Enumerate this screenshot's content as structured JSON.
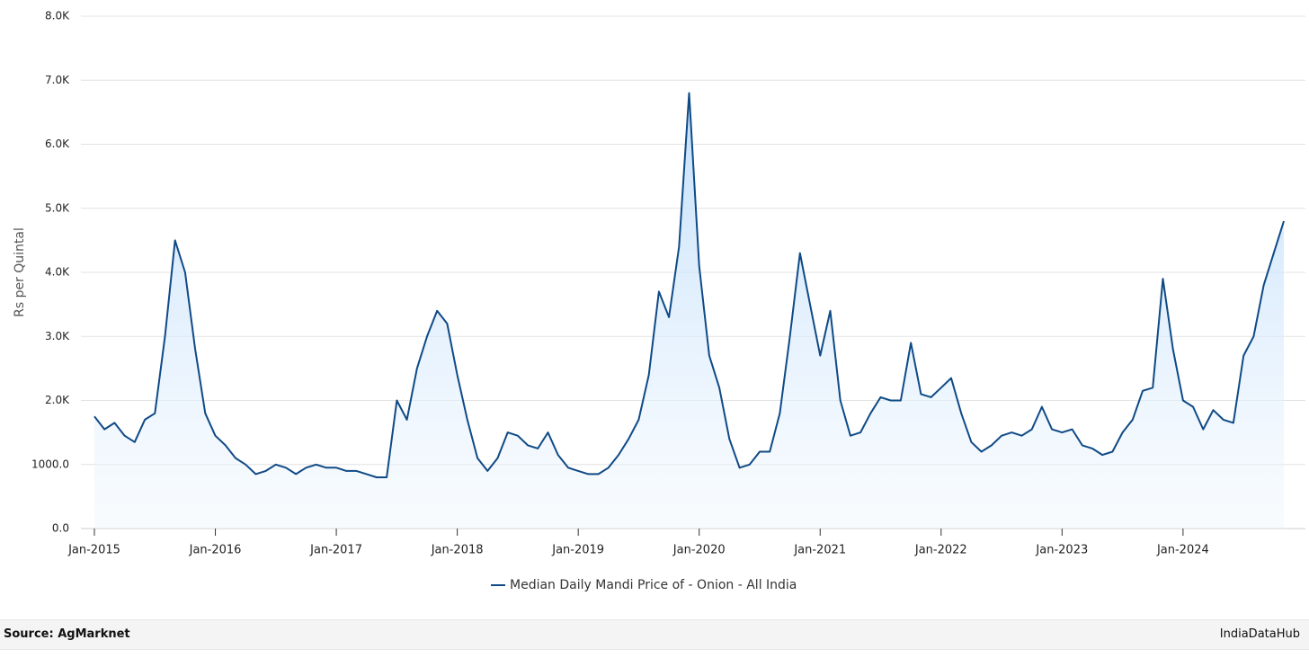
{
  "chart_data": {
    "type": "line",
    "y_label": "Rs per Quintal",
    "x": [
      "2015-01",
      "2015-02",
      "2015-03",
      "2015-04",
      "2015-05",
      "2015-06",
      "2015-07",
      "2015-08",
      "2015-09",
      "2015-10",
      "2015-11",
      "2015-12",
      "2016-01",
      "2016-02",
      "2016-03",
      "2016-04",
      "2016-05",
      "2016-06",
      "2016-07",
      "2016-08",
      "2016-09",
      "2016-10",
      "2016-11",
      "2016-12",
      "2017-01",
      "2017-02",
      "2017-03",
      "2017-04",
      "2017-05",
      "2017-06",
      "2017-07",
      "2017-08",
      "2017-09",
      "2017-10",
      "2017-11",
      "2017-12",
      "2018-01",
      "2018-02",
      "2018-03",
      "2018-04",
      "2018-05",
      "2018-06",
      "2018-07",
      "2018-08",
      "2018-09",
      "2018-10",
      "2018-11",
      "2018-12",
      "2019-01",
      "2019-02",
      "2019-03",
      "2019-04",
      "2019-05",
      "2019-06",
      "2019-07",
      "2019-08",
      "2019-09",
      "2019-10",
      "2019-11",
      "2019-12",
      "2020-01",
      "2020-02",
      "2020-03",
      "2020-04",
      "2020-05",
      "2020-06",
      "2020-07",
      "2020-08",
      "2020-09",
      "2020-10",
      "2020-11",
      "2020-12",
      "2021-01",
      "2021-02",
      "2021-03",
      "2021-04",
      "2021-05",
      "2021-06",
      "2021-07",
      "2021-08",
      "2021-09",
      "2021-10",
      "2021-11",
      "2021-12",
      "2022-01",
      "2022-02",
      "2022-03",
      "2022-04",
      "2022-05",
      "2022-06",
      "2022-07",
      "2022-08",
      "2022-09",
      "2022-10",
      "2022-11",
      "2022-12",
      "2023-01",
      "2023-02",
      "2023-03",
      "2023-04",
      "2023-05",
      "2023-06",
      "2023-07",
      "2023-08",
      "2023-09",
      "2023-10",
      "2023-11",
      "2023-12",
      "2024-01",
      "2024-02",
      "2024-03",
      "2024-04",
      "2024-05",
      "2024-06",
      "2024-07",
      "2024-08",
      "2024-09",
      "2024-10",
      "2024-11"
    ],
    "series": [
      {
        "name": "Median Daily Mandi Price of - Onion - All India",
        "color": "#0f4a86",
        "values": [
          1750,
          1550,
          1650,
          1450,
          1350,
          1700,
          1800,
          3000,
          4500,
          4000,
          2800,
          1800,
          1450,
          1300,
          1100,
          1000,
          850,
          900,
          1000,
          950,
          850,
          950,
          1000,
          950,
          950,
          900,
          900,
          850,
          800,
          800,
          2000,
          1700,
          2500,
          3000,
          3400,
          3200,
          2400,
          1700,
          1100,
          900,
          1100,
          1500,
          1450,
          1300,
          1250,
          1500,
          1150,
          950,
          900,
          850,
          850,
          950,
          1150,
          1400,
          1700,
          2400,
          3700,
          3300,
          4400,
          6800,
          4100,
          2700,
          2200,
          1400,
          950,
          1000,
          1200,
          1200,
          1800,
          3000,
          4300,
          3500,
          2700,
          3400,
          2000,
          1450,
          1500,
          1800,
          2050,
          2000,
          2000,
          2900,
          2100,
          2050,
          2200,
          2350,
          1800,
          1350,
          1200,
          1300,
          1450,
          1500,
          1450,
          1550,
          1900,
          1550,
          1500,
          1550,
          1300,
          1250,
          1150,
          1200,
          1500,
          1700,
          2150,
          2200,
          3900,
          2800,
          2000,
          1900,
          1550,
          1850,
          1700,
          1650,
          2700,
          3000,
          3800,
          4300,
          4800
        ]
      }
    ],
    "xlim": [
      "2015-01",
      "2024-11"
    ],
    "xticks": [
      {
        "value": "2015-01",
        "label": "Jan-2015"
      },
      {
        "value": "2016-01",
        "label": "Jan-2016"
      },
      {
        "value": "2017-01",
        "label": "Jan-2017"
      },
      {
        "value": "2018-01",
        "label": "Jan-2018"
      },
      {
        "value": "2019-01",
        "label": "Jan-2019"
      },
      {
        "value": "2020-01",
        "label": "Jan-2020"
      },
      {
        "value": "2021-01",
        "label": "Jan-2021"
      },
      {
        "value": "2022-01",
        "label": "Jan-2022"
      },
      {
        "value": "2023-01",
        "label": "Jan-2023"
      },
      {
        "value": "2024-01",
        "label": "Jan-2024"
      }
    ],
    "ylim": [
      0,
      8000
    ],
    "yticks": [
      {
        "value": 0,
        "label": "0.0"
      },
      {
        "value": 1000,
        "label": "1000.0"
      },
      {
        "value": 2000,
        "label": "2.0K"
      },
      {
        "value": 3000,
        "label": "3.0K"
      },
      {
        "value": 4000,
        "label": "4.0K"
      },
      {
        "value": 5000,
        "label": "5.0K"
      },
      {
        "value": 6000,
        "label": "6.0K"
      },
      {
        "value": 7000,
        "label": "7.0K"
      },
      {
        "value": 8000,
        "label": "8.0K"
      }
    ],
    "grid": true
  },
  "footer": {
    "source": "Source: AgMarknet",
    "brand": "IndiaDataHub"
  }
}
